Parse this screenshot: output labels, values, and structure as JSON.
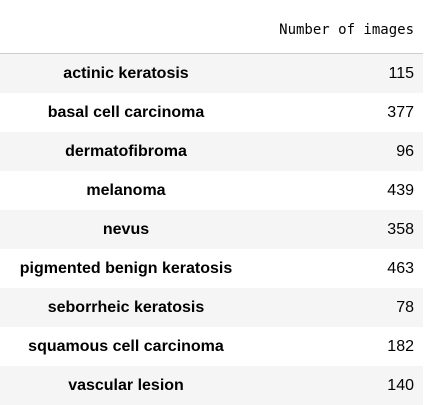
{
  "table": {
    "column_header": "Number of images",
    "rows": [
      {
        "label": "actinic keratosis",
        "value": "115"
      },
      {
        "label": "basal cell carcinoma",
        "value": "377"
      },
      {
        "label": "dermatofibroma",
        "value": "96"
      },
      {
        "label": "melanoma",
        "value": "439"
      },
      {
        "label": "nevus",
        "value": "358"
      },
      {
        "label": "pigmented benign keratosis",
        "value": "463"
      },
      {
        "label": "seborrheic keratosis",
        "value": "78"
      },
      {
        "label": "squamous cell carcinoma",
        "value": "182"
      },
      {
        "label": "vascular lesion",
        "value": "140"
      }
    ]
  }
}
